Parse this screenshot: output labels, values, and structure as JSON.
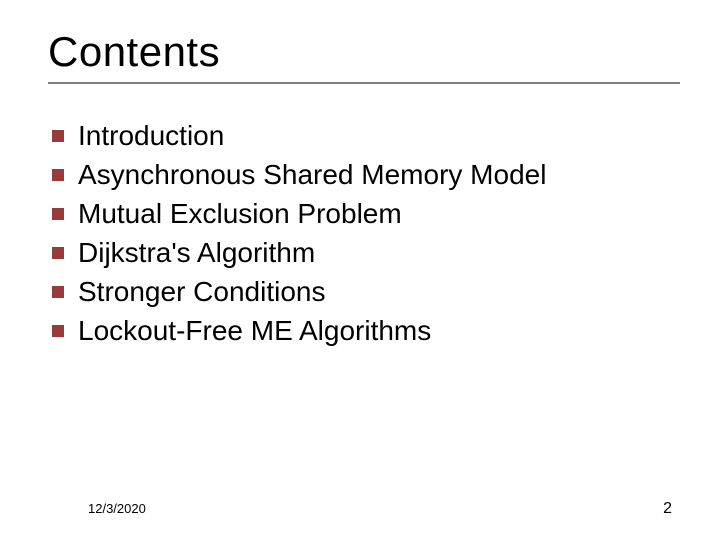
{
  "slide": {
    "title": "Contents",
    "title_color": "#000000",
    "title_fontsize": 42,
    "rule_color": "#808080",
    "bullet_color": "#9a3b3b",
    "bullet_size": 12,
    "item_fontsize": 28,
    "item_color": "#000000",
    "background_color": "#ffffff",
    "items": [
      "Introduction",
      "Asynchronous Shared Memory Model",
      "Mutual Exclusion Problem",
      "Dijkstra's Algorithm",
      "Stronger Conditions",
      "Lockout-Free ME Algorithms"
    ]
  },
  "footer": {
    "date": "12/3/2020",
    "page": "2",
    "date_fontsize": 13,
    "page_fontsize": 16,
    "color": "#000000"
  }
}
